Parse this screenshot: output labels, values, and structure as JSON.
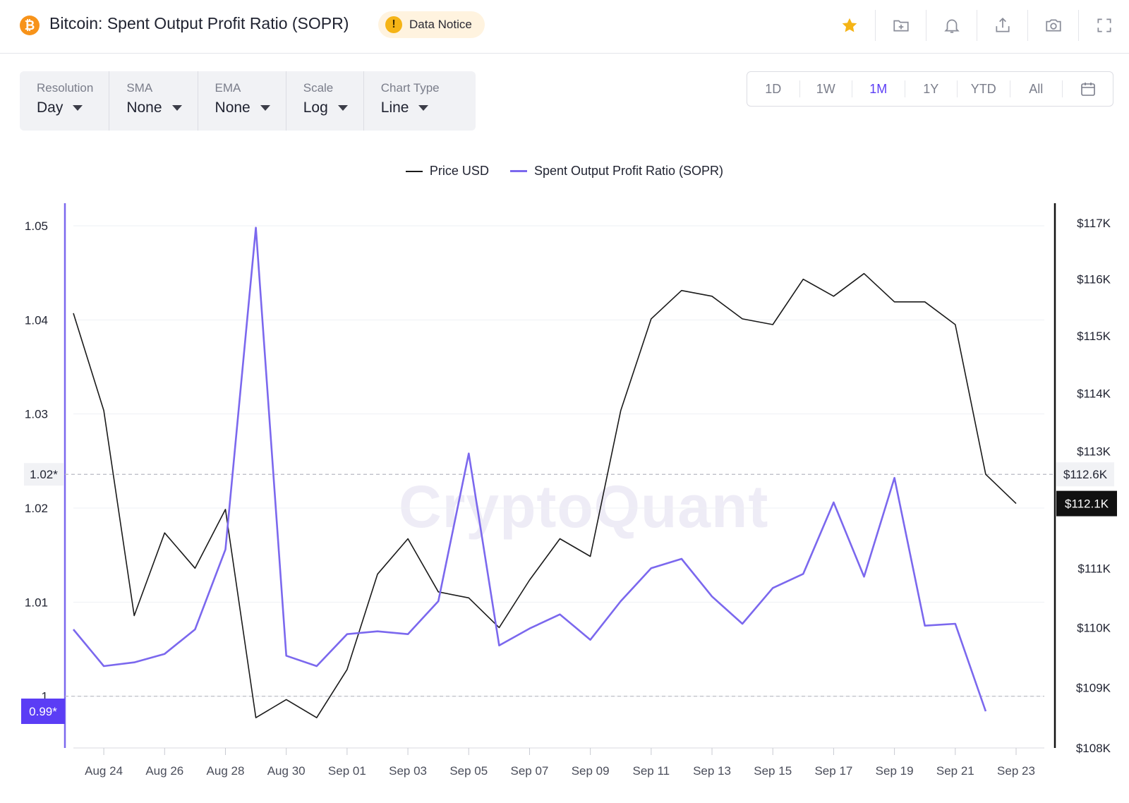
{
  "header": {
    "title": "Bitcoin: Spent Output Profit Ratio (SOPR)",
    "logo_glyph": "₿",
    "notice_label": "Data Notice",
    "notice_glyph": "!",
    "icons": [
      "star-icon",
      "add-folder-icon",
      "bell-icon",
      "share-icon",
      "camera-icon",
      "fullscreen-icon"
    ]
  },
  "controls": [
    {
      "label": "Resolution",
      "value": "Day"
    },
    {
      "label": "SMA",
      "value": "None"
    },
    {
      "label": "EMA",
      "value": "None"
    },
    {
      "label": "Scale",
      "value": "Log"
    },
    {
      "label": "Chart Type",
      "value": "Line"
    }
  ],
  "ranges": {
    "items": [
      "1D",
      "1W",
      "1M",
      "1Y",
      "YTD",
      "All"
    ],
    "active": "1M"
  },
  "legend": {
    "price": "Price USD",
    "sopr": "Spent Output Profit Ratio (SOPR)"
  },
  "watermark": "CryptoQuant",
  "colors": {
    "sopr": "#7b68ee",
    "price": "#1a1a1a",
    "accent": "#5b3df5",
    "star": "#f5b416"
  },
  "chart_data": {
    "type": "line",
    "dates": [
      "Aug 23",
      "Aug 24",
      "Aug 25",
      "Aug 26",
      "Aug 27",
      "Aug 28",
      "Aug 29",
      "Aug 30",
      "Aug 31",
      "Sep 01",
      "Sep 02",
      "Sep 03",
      "Sep 04",
      "Sep 05",
      "Sep 06",
      "Sep 07",
      "Sep 08",
      "Sep 09",
      "Sep 10",
      "Sep 11",
      "Sep 12",
      "Sep 13",
      "Sep 14",
      "Sep 15",
      "Sep 16",
      "Sep 17",
      "Sep 18",
      "Sep 19",
      "Sep 20",
      "Sep 21",
      "Sep 22",
      "Sep 23"
    ],
    "x_tick_labels": [
      "Aug 24",
      "Aug 26",
      "Aug 28",
      "Aug 30",
      "Sep 01",
      "Sep 03",
      "Sep 05",
      "Sep 07",
      "Sep 09",
      "Sep 11",
      "Sep 13",
      "Sep 15",
      "Sep 17",
      "Sep 19",
      "Sep 21",
      "Sep 23"
    ],
    "series": [
      {
        "name": "Spent Output Profit Ratio (SOPR)",
        "axis": "left",
        "values": [
          1.0071,
          1.0032,
          1.0036,
          1.0045,
          1.0071,
          1.0156,
          1.0498,
          1.0043,
          1.0032,
          1.0066,
          1.0069,
          1.0066,
          1.0101,
          1.0258,
          1.0054,
          1.0072,
          1.0087,
          1.006,
          1.0101,
          1.0136,
          1.0146,
          1.0106,
          1.0077,
          1.0115,
          1.013,
          1.0206,
          1.0127,
          1.0232,
          1.0075,
          1.0077,
          0.9984,
          null
        ]
      },
      {
        "name": "Price USD",
        "axis": "right",
        "values": [
          115400,
          113700,
          110200,
          111600,
          111000,
          112000,
          108500,
          108800,
          108500,
          109300,
          110900,
          111500,
          110600,
          110500,
          110000,
          110800,
          111500,
          111200,
          113700,
          115300,
          115800,
          115700,
          115300,
          115200,
          116000,
          115700,
          116100,
          115600,
          115600,
          115200,
          112600,
          112100
        ]
      }
    ],
    "left_axis": {
      "ticks": [
        "1.05",
        "1.04",
        "1.03",
        "1.02",
        "1.01",
        "1"
      ],
      "ylim": [
        0.9945,
        1.0515
      ]
    },
    "right_axis": {
      "ticks": [
        "$117K",
        "$116K",
        "$115K",
        "$114K",
        "$113K",
        "$111K",
        "$110K",
        "$109K",
        "$108K"
      ],
      "scale": "log",
      "ylim": [
        108000,
        117200
      ]
    },
    "markers": {
      "left": "0.99*",
      "left_ref": "1.02*",
      "right_ref": "$112.6K",
      "right_last": "$112.1K"
    },
    "grid": true,
    "legend_position": "top-center"
  }
}
